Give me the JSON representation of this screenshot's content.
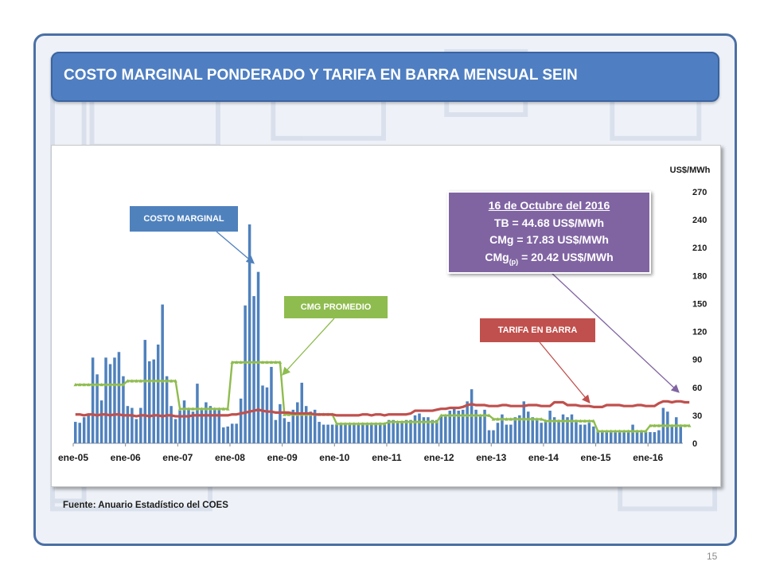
{
  "slide": {
    "title": "COSTO MARGINAL PONDERADO Y TARIFA EN BARRA  MENSUAL SEIN",
    "source_note": "Fuente: Anuario Estadístico del COES",
    "page_number": "15"
  },
  "callouts": {
    "costo_marginal": "COSTO MARGINAL",
    "cmg_promedio": "CMG PROMEDIO",
    "tarifa_barra": "TARIFA  EN BARRA"
  },
  "info_box": {
    "date": "16 de Octubre del 2016",
    "tb": "TB = 44.68 US$/MWh",
    "cmg": "CMg = 17.83 US$/MWh",
    "cmgp_prefix": "CMg",
    "cmgp_sub": "(p)",
    "cmgp_suffix": " = 20.42 US$/MWh"
  },
  "colors": {
    "bars": "#4f81bd",
    "cmg_promedio": "#8fbc4f",
    "tarifa_barra": "#c0504d",
    "info_box": "#8064a2"
  },
  "chart_data": {
    "type": "bar",
    "ylabel": "US$/MWh",
    "ylim": [
      0,
      270
    ],
    "yticks": [
      0,
      30,
      60,
      90,
      120,
      150,
      180,
      210,
      240,
      270
    ],
    "x_tick_labels": [
      "ene-05",
      "ene-06",
      "ene-07",
      "ene-08",
      "ene-09",
      "ene-10",
      "ene-11",
      "ene-12",
      "ene-13",
      "ene-14",
      "ene-15",
      "ene-16"
    ],
    "months_per_label": 12,
    "series": [
      {
        "name": "COSTO MARGINAL",
        "type": "bar",
        "values": [
          23,
          22,
          28,
          32,
          92,
          74,
          46,
          92,
          85,
          92,
          98,
          72,
          40,
          38,
          26,
          38,
          111,
          88,
          90,
          106,
          149,
          72,
          40,
          26,
          35,
          46,
          36,
          34,
          64,
          36,
          44,
          40,
          36,
          36,
          17,
          18,
          21,
          21,
          48,
          148,
          235,
          158,
          184,
          62,
          60,
          82,
          25,
          42,
          27,
          23,
          36,
          44,
          65,
          40,
          34,
          36,
          23,
          20,
          20,
          20,
          20,
          20,
          20,
          20,
          20,
          20,
          22,
          22,
          22,
          22,
          22,
          22,
          25,
          25,
          22,
          22,
          25,
          25,
          30,
          32,
          28,
          28,
          25,
          25,
          30,
          30,
          35,
          38,
          35,
          36,
          45,
          58,
          36,
          30,
          36,
          14,
          14,
          22,
          31,
          20,
          20,
          28,
          30,
          45,
          34,
          28,
          26,
          22,
          25,
          35,
          28,
          25,
          31,
          28,
          31,
          25,
          20,
          20,
          22,
          18,
          14,
          12,
          12,
          12,
          12,
          14,
          12,
          14,
          20,
          14,
          12,
          12,
          12,
          12,
          14,
          38,
          34,
          20,
          28,
          18
        ]
      },
      {
        "name": "CMG PROMEDIO",
        "type": "line",
        "values": [
          63,
          63,
          63,
          63,
          63,
          63,
          63,
          63,
          63,
          63,
          63,
          63,
          67,
          67,
          67,
          67,
          67,
          67,
          67,
          67,
          67,
          67,
          67,
          67,
          37,
          37,
          37,
          37,
          37,
          37,
          37,
          37,
          37,
          37,
          37,
          37,
          87,
          87,
          87,
          87,
          87,
          87,
          87,
          87,
          87,
          87,
          87,
          87,
          31,
          31,
          31,
          31,
          31,
          31,
          31,
          31,
          31,
          31,
          31,
          31,
          21,
          21,
          21,
          21,
          21,
          21,
          21,
          21,
          21,
          21,
          21,
          21,
          23,
          23,
          23,
          23,
          23,
          23,
          23,
          23,
          23,
          23,
          23,
          23,
          30,
          30,
          30,
          30,
          30,
          30,
          30,
          30,
          30,
          30,
          30,
          30,
          26,
          26,
          26,
          26,
          26,
          26,
          26,
          26,
          26,
          26,
          26,
          26,
          24,
          24,
          24,
          24,
          24,
          24,
          24,
          24,
          24,
          24,
          24,
          24,
          13,
          13,
          13,
          13,
          13,
          13,
          13,
          13,
          13,
          13,
          13,
          13,
          19,
          19,
          19,
          19,
          19,
          19,
          19,
          19,
          19,
          19
        ]
      },
      {
        "name": "TARIFA  EN BARRA",
        "type": "line",
        "values": [
          31,
          31,
          30,
          31,
          31,
          30,
          31,
          31,
          30,
          31,
          31,
          30,
          30,
          30,
          29,
          30,
          30,
          29,
          30,
          30,
          29,
          30,
          30,
          29,
          29,
          29,
          29,
          30,
          30,
          30,
          30,
          30,
          30,
          30,
          30,
          30,
          31,
          31,
          32,
          33,
          34,
          35,
          36,
          35,
          34,
          34,
          33,
          33,
          33,
          33,
          32,
          32,
          32,
          32,
          32,
          31,
          31,
          31,
          31,
          31,
          30,
          30,
          30,
          30,
          30,
          30,
          31,
          31,
          30,
          31,
          31,
          30,
          31,
          31,
          31,
          31,
          31,
          32,
          35,
          35,
          35,
          35,
          35,
          36,
          37,
          37,
          38,
          38,
          38,
          39,
          41,
          42,
          41,
          41,
          41,
          40,
          40,
          40,
          41,
          41,
          40,
          40,
          40,
          40,
          41,
          41,
          41,
          40,
          40,
          40,
          44,
          44,
          44,
          41,
          41,
          41,
          40,
          40,
          40,
          39,
          39,
          39,
          41,
          41,
          41,
          41,
          40,
          40,
          40,
          41,
          41,
          40,
          40,
          40,
          43,
          45,
          45,
          44,
          45,
          45,
          44,
          44
        ]
      }
    ]
  }
}
